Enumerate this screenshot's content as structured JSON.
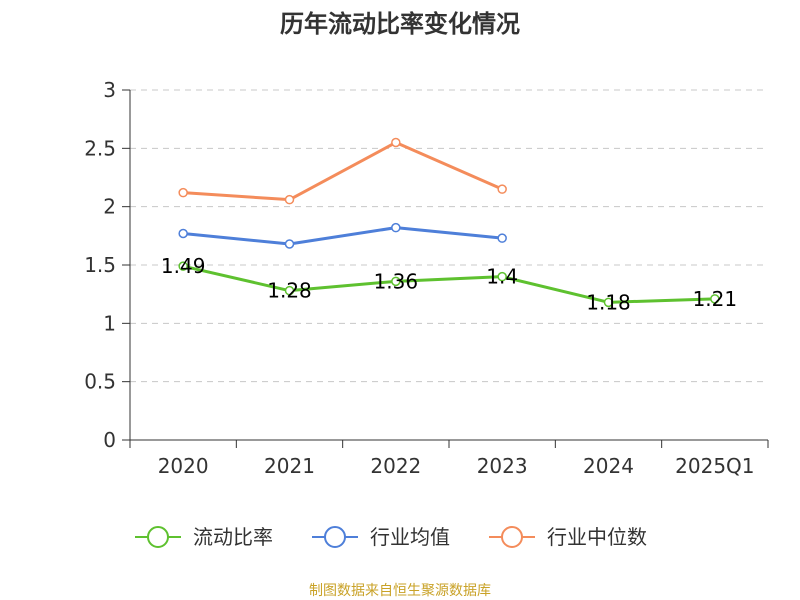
{
  "chart_data": {
    "type": "line",
    "title": "历年流动比率变化情况",
    "categories": [
      "2020",
      "2021",
      "2022",
      "2023",
      "2024",
      "2025Q1"
    ],
    "ylim": [
      0,
      3
    ],
    "yticks": [
      "0",
      "0.5",
      "1",
      "1.5",
      "2",
      "2.5",
      "3"
    ],
    "grid": true,
    "legend_position": "bottom",
    "series": [
      {
        "name": "流动比率",
        "color": "#5ec12f",
        "values": [
          1.49,
          1.28,
          1.36,
          1.4,
          1.18,
          1.21
        ],
        "labels": [
          "1.49",
          "1.28",
          "1.36",
          "1.4",
          "1.18",
          "1.21"
        ],
        "show_labels": true
      },
      {
        "name": "行业均值",
        "color": "#4e7fd9",
        "values": [
          1.77,
          1.68,
          1.82,
          1.73,
          null,
          null
        ],
        "show_labels": false
      },
      {
        "name": "行业中位数",
        "color": "#f48c5b",
        "values": [
          2.12,
          2.06,
          2.55,
          2.15,
          null,
          null
        ],
        "show_labels": false
      }
    ]
  },
  "source_note": "制图数据来自恒生聚源数据库"
}
